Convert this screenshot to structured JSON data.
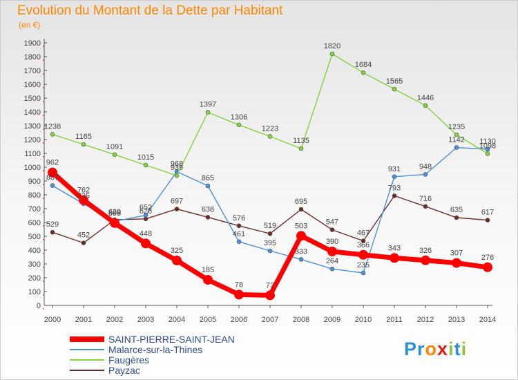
{
  "title": "Evolution du Montant de la Dette par Habitant",
  "unit": "(en €)",
  "logo": {
    "text": "Proxiti"
  },
  "chart_data": {
    "type": "line",
    "x": [
      "2000",
      "2001",
      "2002",
      "2003",
      "2004",
      "2005",
      "2006",
      "2007",
      "2008",
      "2009",
      "2010",
      "2011",
      "2012",
      "2013",
      "2014"
    ],
    "y_ticks": [
      0,
      100,
      200,
      300,
      400,
      500,
      600,
      700,
      800,
      900,
      1000,
      1100,
      1200,
      1300,
      1400,
      1500,
      1600,
      1700,
      1800,
      1900
    ],
    "ylim": [
      0,
      1900
    ],
    "grid": false,
    "legend_position": "bottom-left",
    "series": [
      {
        "name": "SAINT-PIERRE-SAINT-JEAN",
        "color": "#ff0000",
        "values": [
          962,
          762,
          596,
          448,
          325,
          185,
          78,
          73,
          503,
          390,
          366,
          343,
          326,
          307,
          276
        ],
        "labels": [
          "962",
          "762",
          "596",
          "448",
          "325",
          "185",
          "78",
          "73",
          "503",
          "390",
          "366",
          "343",
          "326",
          "307",
          "276"
        ]
      },
      {
        "name": "Malarce-sur-la-Thines",
        "color": "#4a90d9",
        "values": [
          867,
          735,
          609,
          652,
          968,
          865,
          461,
          395,
          333,
          264,
          235,
          931,
          948,
          1142,
          1130
        ],
        "labels": [
          "867",
          "735",
          "609",
          "652",
          "968",
          "865",
          "461",
          "395",
          "333",
          "264",
          "235",
          "931",
          "948",
          "1142",
          "1130"
        ]
      },
      {
        "name": "Faugères",
        "color": "#85d23c",
        "values": [
          1238,
          1165,
          1091,
          1015,
          939,
          1397,
          1306,
          1223,
          1135,
          1820,
          1684,
          1565,
          1446,
          1235,
          1098
        ],
        "labels": [
          "1238",
          "1165",
          "1091",
          "1015",
          "939",
          "1397",
          "1306",
          "1223",
          "1135",
          "1820",
          "1684",
          "1565",
          "1446",
          "1235",
          "1098"
        ]
      },
      {
        "name": "Payzac",
        "color": "#6b2a2a",
        "values": [
          529,
          452,
          620,
          626,
          697,
          638,
          576,
          519,
          695,
          547,
          467,
          793,
          716,
          635,
          617
        ],
        "labels": [
          "529",
          "452",
          "620",
          "626",
          "697",
          "638",
          "576",
          "519",
          "695",
          "547",
          "467",
          "793",
          "716",
          "635",
          "617"
        ]
      }
    ]
  }
}
